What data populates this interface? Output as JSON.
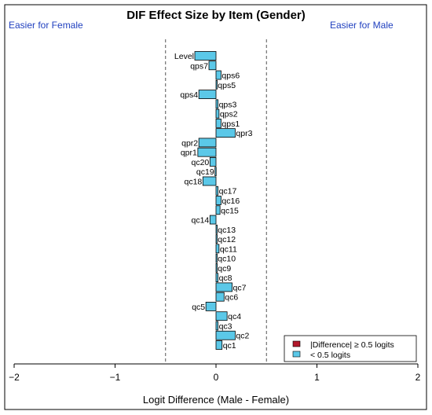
{
  "chart_data": {
    "type": "bar",
    "orientation": "horizontal",
    "title": "DIF Effect Size by Item (Gender)",
    "annotation_left": "Easier for Female",
    "annotation_right": "Easier for Male",
    "xlabel": "Logit Difference (Male - Female)",
    "xlim": [
      -2,
      2
    ],
    "x_ticks": [
      "−2",
      "−1",
      "0",
      "1",
      "2"
    ],
    "x_tick_values": [
      -2,
      -1,
      0,
      1,
      2
    ],
    "reference_lines": [
      -0.5,
      0.5
    ],
    "grid": false,
    "legend_position": "bottom-right",
    "legend": [
      {
        "label": "|Difference| ≥ 0.5 logits",
        "color": "#b2182b"
      },
      {
        "label": "< 0.5 logits",
        "color": "#5bc8e8"
      }
    ],
    "items": [
      "Level",
      "qps7",
      "qps6",
      "qps5",
      "qps4",
      "qps3",
      "qps2",
      "qps1",
      "qpr3",
      "qpr2",
      "qpr1",
      "qc20",
      "qc19",
      "qc18",
      "qc17",
      "qc16",
      "qc15",
      "qc14",
      "qc13",
      "qc12",
      "qc11",
      "qc10",
      "qc9",
      "qc8",
      "qc7",
      "qc6",
      "qc5",
      "qc4",
      "qc3",
      "qc2",
      "qc1"
    ],
    "values": [
      -0.21,
      -0.07,
      0.05,
      0.01,
      -0.17,
      0.02,
      0.03,
      0.05,
      0.19,
      -0.17,
      -0.18,
      -0.06,
      -0.01,
      -0.13,
      0.02,
      0.05,
      0.04,
      -0.06,
      0.01,
      0.01,
      0.03,
      0.01,
      0.01,
      0.02,
      0.16,
      0.08,
      -0.1,
      0.11,
      0.02,
      0.19,
      0.06
    ],
    "bar_color": "#5bc8e8"
  }
}
